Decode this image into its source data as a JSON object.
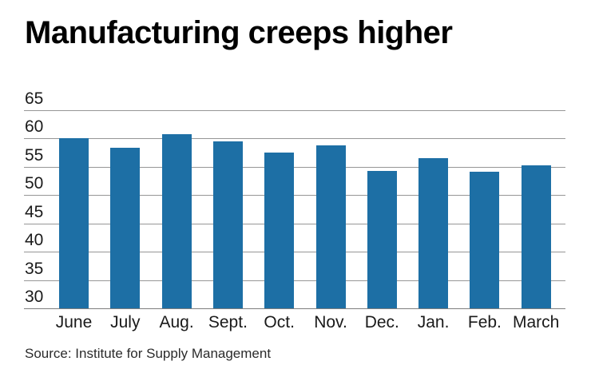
{
  "title": "Manufacturing creeps higher",
  "source": "Source: Institute for Supply Management",
  "colors": {
    "background": "#ffffff",
    "bar": "#1d6fa5",
    "gridline": "#969696",
    "title_text": "#000000",
    "tick_text": "#1a1a1a",
    "source_text": "#2b2b2b"
  },
  "chart_data": {
    "type": "bar",
    "title": "Manufacturing creeps higher",
    "categories": [
      "June",
      "July",
      "Aug.",
      "Sept.",
      "Oct.",
      "Nov.",
      "Dec.",
      "Jan.",
      "Feb.",
      "March"
    ],
    "values": [
      60.0,
      58.4,
      60.8,
      59.5,
      57.5,
      58.8,
      54.3,
      56.6,
      54.2,
      55.3
    ],
    "xlabel": "",
    "ylabel": "",
    "ylim": [
      30,
      65
    ],
    "yticks": [
      65,
      60,
      55,
      50,
      45,
      40,
      35,
      30
    ],
    "grid": "horizontal",
    "legend": "none",
    "bar_color": "#1d6fa5",
    "source": "Source: Institute for Supply Management"
  }
}
